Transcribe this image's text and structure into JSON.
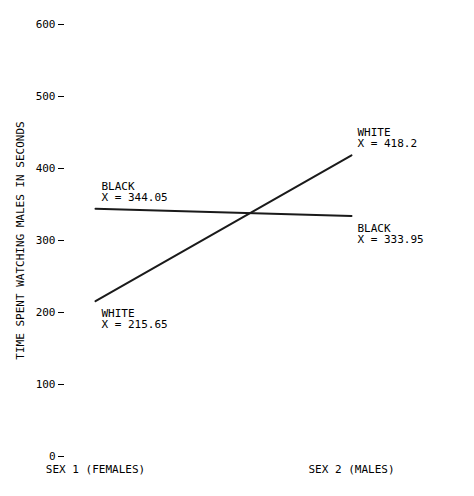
{
  "chart_data": {
    "type": "line",
    "categories": [
      "SEX 1 (FEMALES)",
      "SEX 2 (MALES)"
    ],
    "series": [
      {
        "name": "BLACK",
        "color": "#1a1a1a",
        "values": [
          344.05,
          333.95
        ],
        "value_labels": [
          "X = 344.05",
          "X = 333.95"
        ]
      },
      {
        "name": "WHITE",
        "color": "#1a1a1a",
        "values": [
          215.65,
          418.2
        ],
        "value_labels": [
          "X = 215.65",
          "X = 418.2"
        ]
      }
    ],
    "ylabel": "TIME SPENT WATCHING MALES IN SECONDS",
    "ylim": [
      0,
      600
    ],
    "yticks": [
      0,
      100,
      200,
      300,
      400,
      500,
      600
    ],
    "data_labels": true,
    "grid": false
  }
}
